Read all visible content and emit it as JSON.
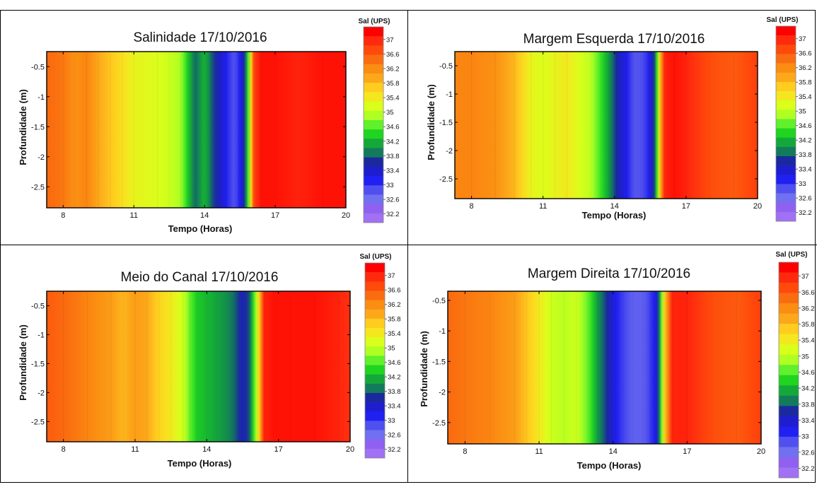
{
  "colorbar": {
    "title": "Sal (UPS)",
    "levels": [
      32.2,
      32.6,
      33,
      33.4,
      33.8,
      34.2,
      34.6,
      35,
      35.4,
      35.8,
      36.2,
      36.6,
      37
    ],
    "labels": [
      "37",
      "36.6",
      "36.2",
      "35.8",
      "35.4",
      "35",
      "34.6",
      "34.2",
      "33.8",
      "33.4",
      "33",
      "32.6",
      "32.2"
    ],
    "colors": [
      "#ff0000",
      "#ff2a0e",
      "#ff4a0c",
      "#fa6c10",
      "#fb8d12",
      "#fca81a",
      "#ffcc1f",
      "#f5e71f",
      "#d9ff1a",
      "#b0ff22",
      "#60f02c",
      "#1fd51f",
      "#14a83a",
      "#137a5c",
      "#1a2a9e",
      "#1e1ecf",
      "#2020f2",
      "#5050f0",
      "#7070f0",
      "#9060f0",
      "#a070f5"
    ]
  },
  "chart_data": [
    {
      "type": "heatmap",
      "title": "Salinidade 17/10/2016",
      "xlabel": "Tempo (Horas)",
      "ylabel": "Profundidade (m)",
      "xlim": [
        7.3,
        20
      ],
      "ylim": [
        -2.85,
        -0.25
      ],
      "xticks": [
        8,
        11,
        14,
        17,
        20
      ],
      "yticks": [
        -0.5,
        -1,
        -1.5,
        -2,
        -2.5
      ],
      "colorbar_label": "Sal (UPS)",
      "colorbar_levels": [
        32.2,
        37
      ],
      "salinity_by_time": {
        "x": [
          7.3,
          8,
          8.5,
          9,
          9.5,
          10,
          10.5,
          11,
          12,
          12.5,
          13,
          13.3,
          13.6,
          14,
          14.3,
          14.6,
          14.9,
          15.1,
          15.3,
          15.5,
          15.7,
          15.9,
          16.1,
          16.4,
          17,
          18,
          19,
          20
        ],
        "values": [
          36.3,
          36.2,
          36.0,
          36.1,
          35.8,
          35.6,
          35.4,
          35.2,
          35.1,
          35.0,
          34.8,
          34.3,
          33.8,
          34.2,
          33.8,
          33.5,
          33.2,
          33.0,
          32.9,
          33.2,
          33.6,
          34.8,
          36.6,
          36.9,
          36.9,
          36.8,
          36.9,
          36.9
        ]
      }
    },
    {
      "type": "heatmap",
      "title": "Margem Esquerda 17/10/2016",
      "xlabel": "Tempo (Horas)",
      "ylabel": "Profundidade (m)",
      "xlim": [
        7.3,
        20
      ],
      "ylim": [
        -2.85,
        -0.25
      ],
      "xticks": [
        8,
        11,
        14,
        17,
        20
      ],
      "yticks": [
        -0.5,
        -1,
        -1.5,
        -2,
        -2.5
      ],
      "colorbar_label": "Sal (UPS)",
      "colorbar_levels": [
        32.2,
        37
      ],
      "salinity_by_time": {
        "x": [
          7.3,
          8,
          9,
          9.8,
          10.5,
          11,
          11.5,
          12,
          13,
          13.4,
          13.8,
          14.1,
          14.5,
          14.8,
          15.1,
          15.4,
          15.7,
          15.9,
          16.1,
          16.5,
          17,
          18,
          19,
          20
        ],
        "values": [
          36.1,
          36.1,
          36.0,
          35.7,
          35.2,
          35.1,
          35.2,
          35.3,
          34.9,
          34.5,
          34.0,
          33.6,
          33.2,
          32.9,
          32.9,
          33.1,
          33.8,
          35.6,
          36.8,
          36.9,
          36.8,
          36.5,
          36.4,
          36.6
        ]
      }
    },
    {
      "type": "heatmap",
      "title": "Meio do Canal 17/10/2016",
      "xlabel": "Tempo (Horas)",
      "ylabel": "Profundidade (m)",
      "xlim": [
        7.3,
        20
      ],
      "ylim": [
        -2.85,
        -0.25
      ],
      "xticks": [
        8,
        11,
        14,
        17,
        20
      ],
      "yticks": [
        -0.5,
        -1,
        -1.5,
        -2,
        -2.5
      ],
      "colorbar_label": "Sal (UPS)",
      "colorbar_levels": [
        32.2,
        37
      ],
      "salinity_by_time": {
        "x": [
          7.3,
          8,
          9,
          10,
          10.5,
          11,
          11.5,
          12,
          12.5,
          13,
          13.3,
          13.6,
          14,
          14.4,
          14.8,
          15.2,
          15.5,
          15.8,
          16.1,
          16.4,
          16.8,
          17.5,
          18.5,
          19.5,
          20
        ],
        "values": [
          36.4,
          36.3,
          36.1,
          35.9,
          35.7,
          35.9,
          35.8,
          35.5,
          35.3,
          35.0,
          34.6,
          34.3,
          34.2,
          34.1,
          34.0,
          33.8,
          33.5,
          33.8,
          35.0,
          36.8,
          36.9,
          36.9,
          36.9,
          36.8,
          36.7
        ]
      }
    },
    {
      "type": "heatmap",
      "title": "Margem Direita 17/10/2016",
      "xlabel": "Tempo (Horas)",
      "ylabel": "Profundidade (m)",
      "xlim": [
        7.3,
        20
      ],
      "ylim": [
        -2.85,
        -0.35
      ],
      "xticks": [
        8,
        11,
        14,
        17,
        20
      ],
      "yticks": [
        -0.5,
        -1,
        -1.5,
        -2,
        -2.5
      ],
      "colorbar_label": "Sal (UPS)",
      "colorbar_levels": [
        32.2,
        37
      ],
      "salinity_by_time": {
        "x": [
          7.3,
          8,
          9,
          10,
          10.5,
          11,
          11.5,
          12,
          12.5,
          13,
          13.4,
          13.8,
          14.1,
          14.4,
          14.8,
          15.2,
          15.5,
          15.8,
          16.1,
          16.4,
          17,
          18,
          19,
          20
        ],
        "values": [
          36.3,
          36.2,
          36.1,
          35.9,
          35.6,
          35.3,
          35.0,
          34.9,
          35.0,
          34.6,
          34.0,
          33.6,
          33.2,
          33.0,
          32.8,
          32.8,
          33.0,
          33.4,
          35.6,
          36.8,
          36.8,
          36.5,
          36.4,
          36.6
        ]
      }
    }
  ]
}
